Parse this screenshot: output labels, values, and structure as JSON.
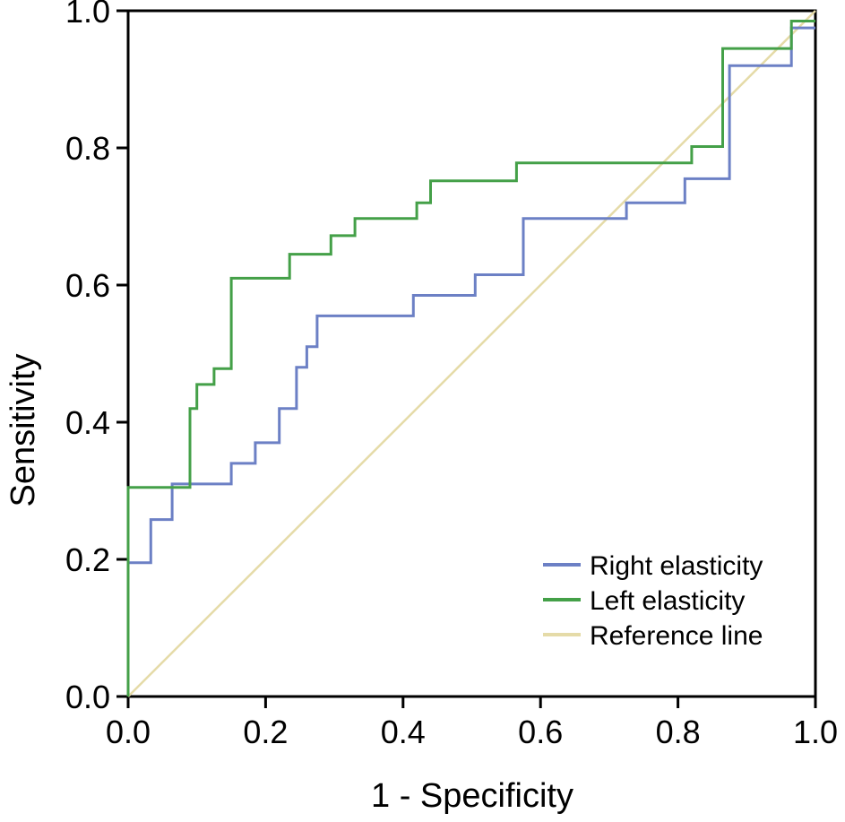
{
  "figure": {
    "background": "#ffffff",
    "frame_color": "#000000"
  },
  "chart_data": {
    "type": "line",
    "subtype": "roc-step-curve",
    "title": "",
    "xlabel": "1 - Specificity",
    "ylabel": "Sensitivity",
    "xlim": [
      0,
      1
    ],
    "ylim": [
      0,
      1
    ],
    "xticks": [
      "0.0",
      "0.2",
      "0.4",
      "0.6",
      "0.8",
      "1.0"
    ],
    "yticks": [
      "0.0",
      "0.2",
      "0.4",
      "0.6",
      "0.8",
      "1.0"
    ],
    "grid": false,
    "legend_position": "inside-bottom-right",
    "series": [
      {
        "name": "Right elasticity",
        "color": "#6c80c5",
        "width": 3,
        "points": [
          [
            0,
            0
          ],
          [
            0,
            0.195
          ],
          [
            0.033,
            0.195
          ],
          [
            0.033,
            0.258
          ],
          [
            0.064,
            0.258
          ],
          [
            0.064,
            0.31
          ],
          [
            0.15,
            0.31
          ],
          [
            0.15,
            0.34
          ],
          [
            0.185,
            0.34
          ],
          [
            0.185,
            0.37
          ],
          [
            0.22,
            0.37
          ],
          [
            0.22,
            0.42
          ],
          [
            0.245,
            0.42
          ],
          [
            0.245,
            0.48
          ],
          [
            0.26,
            0.48
          ],
          [
            0.26,
            0.51
          ],
          [
            0.275,
            0.51
          ],
          [
            0.275,
            0.555
          ],
          [
            0.415,
            0.555
          ],
          [
            0.415,
            0.585
          ],
          [
            0.505,
            0.585
          ],
          [
            0.505,
            0.615
          ],
          [
            0.575,
            0.615
          ],
          [
            0.575,
            0.697
          ],
          [
            0.725,
            0.697
          ],
          [
            0.725,
            0.72
          ],
          [
            0.81,
            0.72
          ],
          [
            0.81,
            0.755
          ],
          [
            0.875,
            0.755
          ],
          [
            0.875,
            0.92
          ],
          [
            0.965,
            0.92
          ],
          [
            0.965,
            0.975
          ],
          [
            1,
            0.975
          ]
        ]
      },
      {
        "name": "Left elasticity",
        "color": "#44a048",
        "width": 3,
        "points": [
          [
            0,
            0
          ],
          [
            0,
            0.305
          ],
          [
            0.09,
            0.305
          ],
          [
            0.09,
            0.42
          ],
          [
            0.1,
            0.42
          ],
          [
            0.1,
            0.455
          ],
          [
            0.125,
            0.455
          ],
          [
            0.125,
            0.478
          ],
          [
            0.15,
            0.478
          ],
          [
            0.15,
            0.61
          ],
          [
            0.235,
            0.61
          ],
          [
            0.235,
            0.645
          ],
          [
            0.295,
            0.645
          ],
          [
            0.295,
            0.672
          ],
          [
            0.33,
            0.672
          ],
          [
            0.33,
            0.697
          ],
          [
            0.42,
            0.697
          ],
          [
            0.42,
            0.72
          ],
          [
            0.44,
            0.72
          ],
          [
            0.44,
            0.752
          ],
          [
            0.565,
            0.752
          ],
          [
            0.565,
            0.778
          ],
          [
            0.82,
            0.778
          ],
          [
            0.82,
            0.802
          ],
          [
            0.865,
            0.802
          ],
          [
            0.865,
            0.945
          ],
          [
            0.965,
            0.945
          ],
          [
            0.965,
            0.985
          ],
          [
            1,
            0.985
          ]
        ]
      },
      {
        "name": "Reference line",
        "color": "#e5dba8",
        "width": 2.5,
        "points": [
          [
            0,
            0
          ],
          [
            1,
            1
          ]
        ]
      }
    ]
  }
}
